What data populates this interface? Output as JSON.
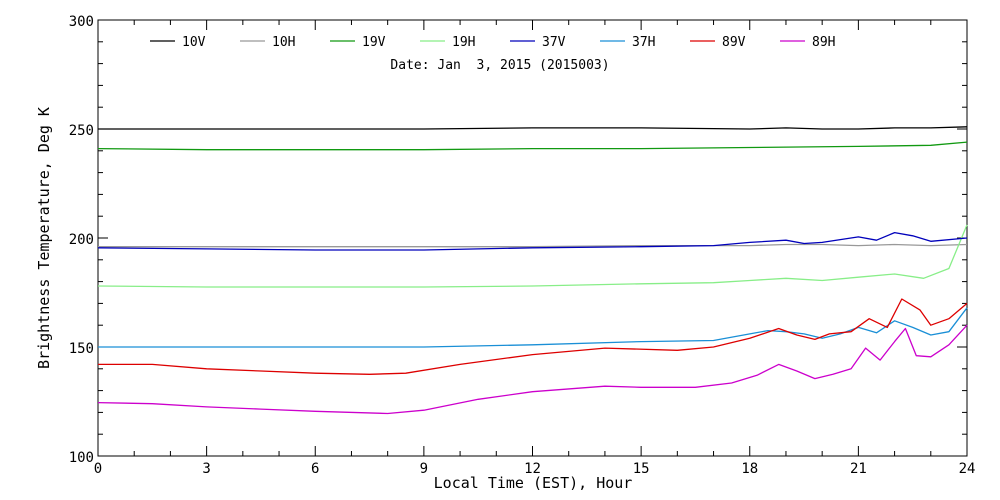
{
  "chart_data": {
    "type": "line",
    "xlabel": "Local Time (EST), Hour",
    "ylabel": "Brightness Temperature, Deg K",
    "annotation": "Date: Jan  3, 2015 (2015003)",
    "xlim": [
      0,
      24
    ],
    "ylim": [
      100,
      300
    ],
    "xticks": [
      0,
      3,
      6,
      9,
      12,
      15,
      18,
      21,
      24
    ],
    "yticks": [
      100,
      150,
      200,
      250,
      300
    ],
    "grid": false,
    "legend_position": "top",
    "series": [
      {
        "name": "10V",
        "color": "#000000",
        "x": [
          0,
          3,
          6,
          9,
          12,
          15,
          18,
          19,
          20,
          21,
          22,
          23,
          24
        ],
        "y": [
          250,
          250,
          250,
          250,
          250.5,
          250.5,
          250,
          250.5,
          250,
          250,
          250.5,
          250.5,
          251
        ]
      },
      {
        "name": "10H",
        "color": "#999999",
        "x": [
          0,
          3,
          6,
          9,
          12,
          15,
          18,
          19,
          20,
          21,
          22,
          23,
          24
        ],
        "y": [
          196,
          196,
          196,
          196,
          196,
          196.5,
          196.5,
          197,
          197,
          196.5,
          197,
          196.5,
          197
        ]
      },
      {
        "name": "19V",
        "color": "#119911",
        "x": [
          0,
          3,
          6,
          9,
          12,
          15,
          18,
          21,
          23,
          24
        ],
        "y": [
          241,
          240.5,
          240.5,
          240.5,
          241,
          241,
          241.5,
          242,
          242.5,
          244
        ]
      },
      {
        "name": "19H",
        "color": "#88ee88",
        "x": [
          0,
          3,
          6,
          9,
          12,
          15,
          17,
          18,
          19,
          20,
          21,
          22,
          22.8,
          23.5,
          24
        ],
        "y": [
          178,
          177.5,
          177.5,
          177.5,
          178,
          179,
          179.5,
          180.5,
          181.5,
          180.5,
          182,
          183.5,
          181.5,
          186,
          206
        ]
      },
      {
        "name": "37V",
        "color": "#0000bb",
        "x": [
          0,
          3,
          6,
          9,
          12,
          15,
          17,
          18,
          19,
          19.5,
          20,
          21,
          21.5,
          22,
          22.5,
          23,
          24
        ],
        "y": [
          195.5,
          195,
          194.5,
          194.5,
          195.5,
          196,
          196.5,
          198,
          199,
          197.5,
          198,
          200.5,
          199,
          202.5,
          201,
          198.5,
          200
        ]
      },
      {
        "name": "37H",
        "color": "#1a8fd6",
        "x": [
          0,
          3,
          6,
          9,
          12,
          15,
          17,
          18,
          18.5,
          19,
          19.5,
          20,
          20.5,
          21,
          21.5,
          22,
          22.5,
          23,
          23.5,
          24
        ],
        "y": [
          150,
          150,
          150,
          150,
          151,
          152.5,
          153,
          156,
          157.5,
          157,
          156,
          154,
          156,
          159,
          156.5,
          162,
          159,
          155.5,
          157,
          168
        ]
      },
      {
        "name": "89V",
        "color": "#dd0000",
        "x": [
          0,
          1.5,
          3,
          4.5,
          6,
          7.5,
          8.5,
          10,
          12,
          14,
          16,
          17,
          18,
          18.8,
          19.3,
          19.8,
          20.2,
          20.8,
          21.3,
          21.8,
          22.2,
          22.7,
          23,
          23.5,
          24
        ],
        "y": [
          142,
          142,
          140,
          139,
          138,
          137.5,
          138,
          142,
          146.5,
          149.5,
          148.5,
          150,
          154,
          158.5,
          155.5,
          153.5,
          156,
          157,
          163,
          159,
          172,
          167,
          160,
          163,
          170
        ]
      },
      {
        "name": "89H",
        "color": "#cc00cc",
        "x": [
          0,
          1.5,
          3,
          4.5,
          6,
          8,
          9,
          10.5,
          12,
          14,
          15,
          16.5,
          17.5,
          18.2,
          18.8,
          19.3,
          19.8,
          20.3,
          20.8,
          21.2,
          21.6,
          22,
          22.3,
          22.6,
          23,
          23.5,
          24
        ],
        "y": [
          124.5,
          124,
          122.5,
          121.5,
          120.5,
          119.5,
          121,
          126,
          129.5,
          132,
          131.5,
          131.5,
          133.5,
          137,
          142,
          139,
          135.5,
          137.5,
          140,
          149.5,
          144,
          152.5,
          158.5,
          146,
          145.5,
          151,
          160
        ]
      }
    ]
  }
}
